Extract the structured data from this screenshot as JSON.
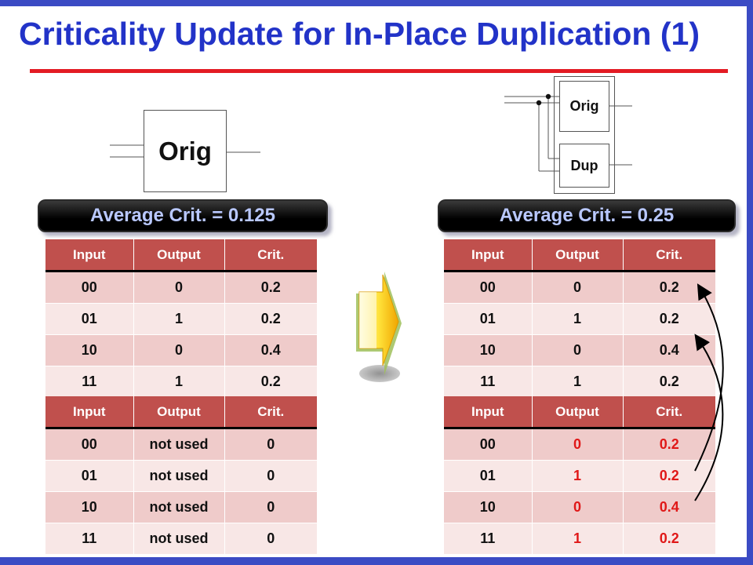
{
  "title": "Criticality Update for In-Place Duplication (1)",
  "colors": {
    "title": "#2233c8",
    "rule": "#e31b23",
    "frame": "#3b4bc4",
    "header": "#c0504d",
    "highlight": "#e01818"
  },
  "left_gate": {
    "label": "Orig"
  },
  "right_gates": {
    "orig_label": "Orig",
    "dup_label": "Dup"
  },
  "left_banner": "Average Crit. = 0.125",
  "right_banner": "Average Crit. = 0.25",
  "arrow_icon": "right-arrow-icon",
  "tables": {
    "left_orig": {
      "headers": [
        "Input",
        "Output",
        "Crit."
      ],
      "rows": [
        [
          "00",
          "0",
          "0.2"
        ],
        [
          "01",
          "1",
          "0.2"
        ],
        [
          "10",
          "0",
          "0.4"
        ],
        [
          "11",
          "1",
          "0.2"
        ]
      ]
    },
    "left_unused": {
      "headers": [
        "Input",
        "Output",
        "Crit."
      ],
      "rows": [
        [
          "00",
          "not used",
          "0"
        ],
        [
          "01",
          "not used",
          "0"
        ],
        [
          "10",
          "not used",
          "0"
        ],
        [
          "11",
          "not used",
          "0"
        ]
      ]
    },
    "right_orig": {
      "headers": [
        "Input",
        "Output",
        "Crit."
      ],
      "rows": [
        [
          "00",
          "0",
          "0.2"
        ],
        [
          "01",
          "1",
          "0.2"
        ],
        [
          "10",
          "0",
          "0.4"
        ],
        [
          "11",
          "1",
          "0.2"
        ]
      ]
    },
    "right_dup": {
      "headers": [
        "Input",
        "Output",
        "Crit."
      ],
      "rows": [
        [
          "00",
          "0",
          "0.2"
        ],
        [
          "01",
          "1",
          "0.2"
        ],
        [
          "10",
          "0",
          "0.4"
        ],
        [
          "11",
          "1",
          "0.2"
        ]
      ]
    }
  }
}
